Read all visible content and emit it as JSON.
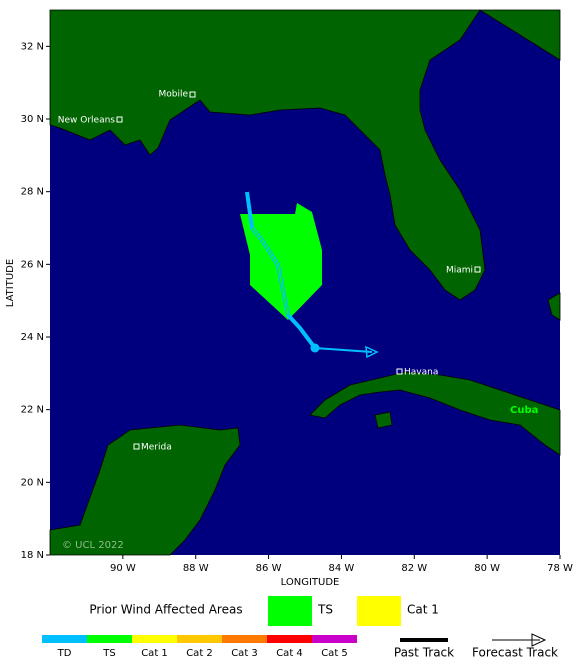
{
  "map": {
    "lat_ticks": [
      {
        "value": 32,
        "label": "32 N"
      },
      {
        "value": 30,
        "label": "30 N"
      },
      {
        "value": 28,
        "label": "28 N"
      },
      {
        "value": 26,
        "label": "26 N"
      },
      {
        "value": 24,
        "label": "24 N"
      },
      {
        "value": 22,
        "label": "22 N"
      },
      {
        "value": 20,
        "label": "20 N"
      },
      {
        "value": 18,
        "label": "18 N"
      }
    ],
    "lon_ticks": [
      {
        "value": 90,
        "label": "90 W"
      },
      {
        "value": 88,
        "label": "88 W"
      },
      {
        "value": 86,
        "label": "86 W"
      },
      {
        "value": 84,
        "label": "84 W"
      },
      {
        "value": 82,
        "label": "82 W"
      },
      {
        "value": 80,
        "label": "80 W"
      },
      {
        "value": 78,
        "label": "78 W"
      }
    ],
    "x_label": "LONGITUDE",
    "y_label": "LATITUDE",
    "cities": {
      "mobile": "Mobile",
      "new_orleans": "New Orleans",
      "miami": "Miami",
      "havana": "Havana",
      "merida": "Merida"
    },
    "country": "Cuba",
    "copyright": "© UCL 2022"
  },
  "legend": {
    "wind_title": "Prior Wind Affected Areas",
    "wind_ts": "TS",
    "wind_cat1": "Cat 1",
    "scale": [
      "TD",
      "TS",
      "Cat 1",
      "Cat 2",
      "Cat 3",
      "Cat 4",
      "Cat 5"
    ],
    "past_track": "Past Track",
    "forecast_track": "Forecast Track"
  }
}
